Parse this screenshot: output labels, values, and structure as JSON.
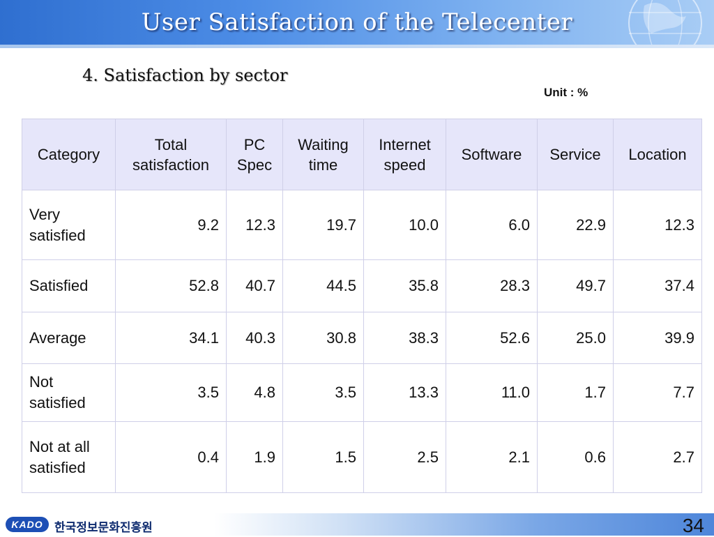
{
  "header": {
    "title": "User Satisfaction of the Telecenter"
  },
  "section": {
    "title": "4. Satisfaction by sector",
    "unit": "Unit : %"
  },
  "table": {
    "columns": [
      "Category",
      "Total satisfaction",
      "PC Spec",
      "Waiting time",
      "Internet speed",
      "Software",
      "Service",
      "Location"
    ],
    "rows": [
      {
        "label": "Very satisfied",
        "values": [
          "9.2",
          "12.3",
          "19.7",
          "10.0",
          "6.0",
          "22.9",
          "12.3"
        ]
      },
      {
        "label": "Satisfied",
        "values": [
          "52.8",
          "40.7",
          "44.5",
          "35.8",
          "28.3",
          "49.7",
          "37.4"
        ]
      },
      {
        "label": "Average",
        "values": [
          "34.1",
          "40.3",
          "30.8",
          "38.3",
          "52.6",
          "25.0",
          "39.9"
        ]
      },
      {
        "label": "Not satisfied",
        "values": [
          "3.5",
          "4.8",
          "3.5",
          "13.3",
          "11.0",
          "1.7",
          "7.7"
        ]
      },
      {
        "label": "Not at all satisfied",
        "values": [
          "0.4",
          "1.9",
          "1.5",
          "2.5",
          "2.1",
          "0.6",
          "2.7"
        ]
      }
    ]
  },
  "footer": {
    "logo_text": "KADO",
    "org_name": "한국정보문화진흥원",
    "page_number": "34"
  },
  "colors": {
    "header_blue": "#2f6fd0",
    "table_header_bg": "#e6e6fa",
    "logo_blue": "#1d4fb5"
  },
  "icons": {
    "header_decoration": "globe-icon"
  }
}
